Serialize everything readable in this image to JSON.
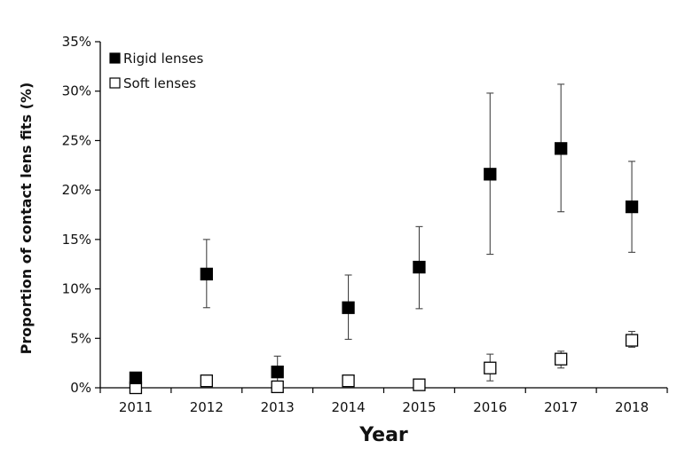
{
  "chart_data": {
    "type": "scatter",
    "xlabel": "Year",
    "ylabel": "Proportion of contact lens fits (%)",
    "categories": [
      "2011",
      "2012",
      "2013",
      "2014",
      "2015",
      "2016",
      "2017",
      "2018"
    ],
    "ylim": [
      0,
      35
    ],
    "yticks": [
      "0%",
      "5%",
      "10%",
      "15%",
      "20%",
      "25%",
      "30%",
      "35%"
    ],
    "ytick_values": [
      0,
      5,
      10,
      15,
      20,
      25,
      30,
      35
    ],
    "grid": false,
    "legend_position": "top-left",
    "series": [
      {
        "name": "Rigid lenses",
        "marker": "filled-square",
        "color": "#000000",
        "values": [
          1.0,
          11.5,
          1.6,
          8.1,
          12.2,
          21.6,
          24.2,
          18.3
        ],
        "error_low": [
          null,
          8.1,
          0.1,
          4.9,
          8.0,
          13.5,
          17.8,
          13.7
        ],
        "error_high": [
          null,
          15.0,
          3.2,
          11.4,
          16.3,
          29.8,
          30.7,
          22.9
        ]
      },
      {
        "name": "Soft lenses",
        "marker": "open-square",
        "color": "#000000",
        "values": [
          0.0,
          0.7,
          0.1,
          0.7,
          0.3,
          2.0,
          2.9,
          4.8
        ],
        "error_low": [
          null,
          null,
          null,
          null,
          null,
          0.7,
          2.0,
          4.1
        ],
        "error_high": [
          null,
          null,
          null,
          null,
          null,
          3.4,
          3.7,
          5.7
        ]
      }
    ]
  }
}
